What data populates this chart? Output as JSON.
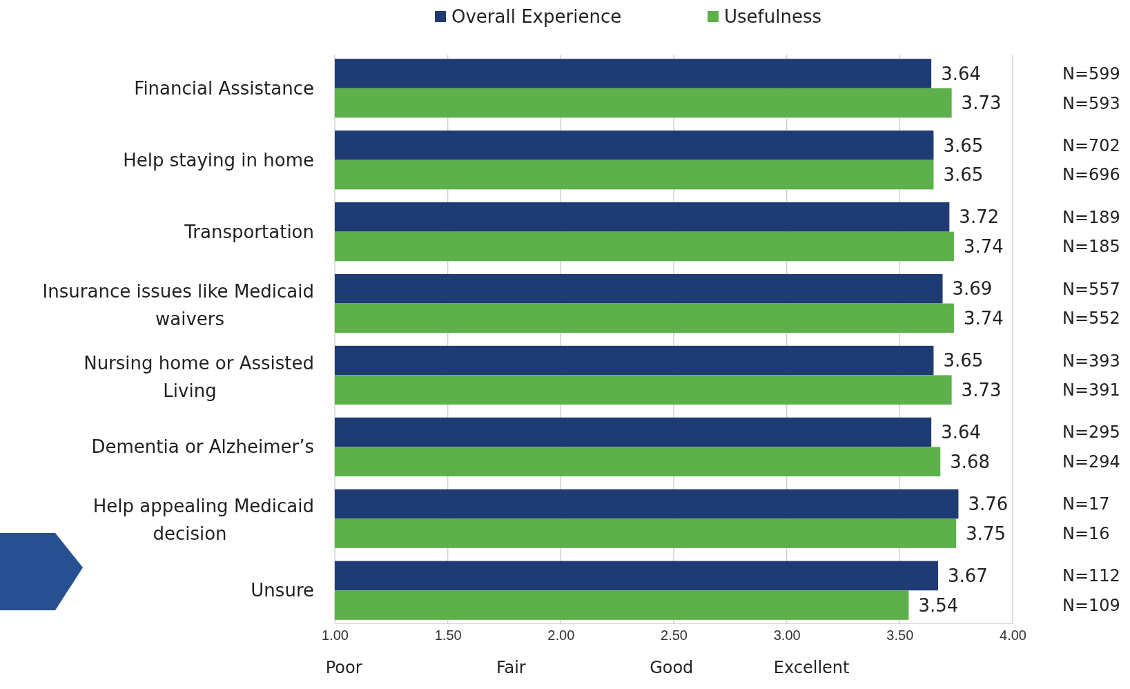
{
  "chart_data": {
    "type": "bar",
    "orientation": "horizontal",
    "categories": [
      "Financial Assistance",
      "Help staying in home",
      "Transportation",
      "Insurance issues like Medicaid waivers",
      "Nursing home or Assisted Living",
      "Dementia or Alzheimer’s",
      "Help appealing Medicaid decision",
      "Unsure"
    ],
    "series": [
      {
        "name": "Overall Experience",
        "color": "#1f3b73",
        "values": [
          3.64,
          3.65,
          3.72,
          3.69,
          3.65,
          3.64,
          3.76,
          3.67
        ]
      },
      {
        "name": "Usefulness",
        "color": "#5db04a",
        "values": [
          3.73,
          3.65,
          3.74,
          3.74,
          3.73,
          3.68,
          3.75,
          3.54
        ]
      }
    ],
    "xlim": [
      1,
      4
    ],
    "xticks": [
      {
        "value": 1,
        "label": "1.00"
      },
      {
        "value": 1.5,
        "label": "1.50"
      },
      {
        "value": 2,
        "label": "2.00"
      },
      {
        "value": 2.5,
        "label": "2.50"
      },
      {
        "value": 3,
        "label": "3.00"
      },
      {
        "value": 3.5,
        "label": "3.50"
      },
      {
        "value": 4,
        "label": "4.00"
      }
    ],
    "grid": "x",
    "legend": "top",
    "data_labels": true,
    "annotations": [
      "N=599",
      "N=593",
      "N=702",
      "N=696",
      "N=189",
      "N=185",
      "N=557",
      "N=552",
      "N=393",
      "N=391",
      "N=295",
      "N=294",
      "N=17",
      "N=16",
      "N=112",
      "N=109",
      "Poor",
      "Fair",
      "Good",
      "Excellent"
    ]
  }
}
